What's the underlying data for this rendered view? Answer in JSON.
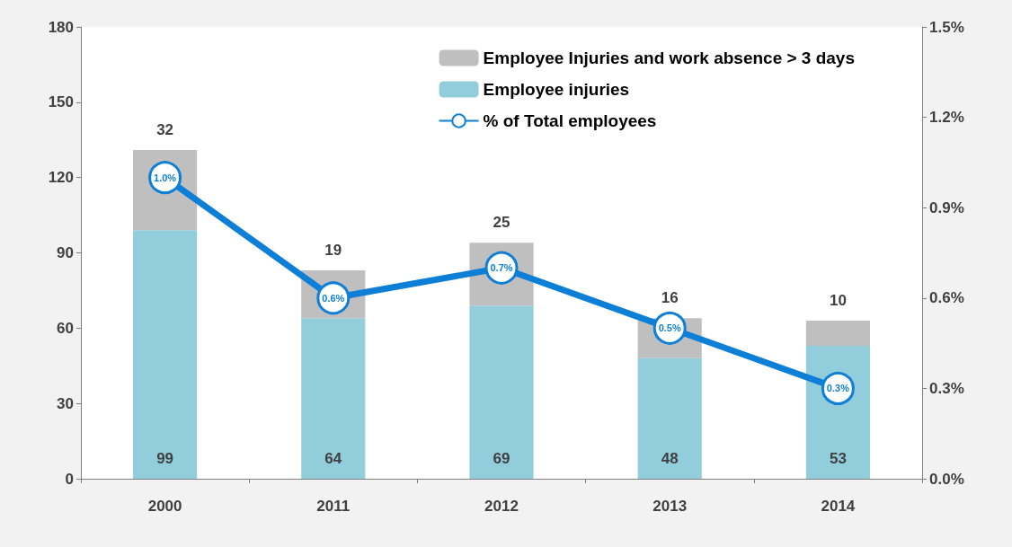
{
  "chart_data": {
    "type": "bar",
    "categories": [
      "2000",
      "2011",
      "2012",
      "2013",
      "2014"
    ],
    "series": [
      {
        "name": "Employee injuries",
        "color": "#92cddc",
        "values": [
          99,
          64,
          69,
          48,
          53
        ]
      },
      {
        "name": "Employee Injuries and work absence > 3 days",
        "color": "#bfbfbf",
        "values": [
          32,
          19,
          25,
          16,
          10
        ]
      },
      {
        "name": "% of Total employees",
        "type": "line",
        "axis": "y2",
        "color": "#0e7fd6",
        "values": [
          1.0,
          0.6,
          0.7,
          0.5,
          0.3
        ],
        "value_labels": [
          "1.0%",
          "0.6%",
          "0.7%",
          "0.5%",
          "0.3%"
        ]
      }
    ],
    "stacked": true,
    "data_labels": true,
    "ylim": [
      0,
      180
    ],
    "yticks": [
      0,
      30,
      60,
      90,
      120,
      150,
      180
    ],
    "y2lim": [
      0,
      1.5
    ],
    "y2ticks": [
      {
        "value": 0,
        "label": "0.0%"
      },
      {
        "value": 0.3,
        "label": "0.3%"
      },
      {
        "value": 0.6,
        "label": "0.6%"
      },
      {
        "value": 0.9,
        "label": "0.9%"
      },
      {
        "value": 1.2,
        "label": "1.2%"
      },
      {
        "value": 1.5,
        "label": "1.5%"
      }
    ],
    "legend": "top right",
    "marker": "circle",
    "grid": false
  }
}
